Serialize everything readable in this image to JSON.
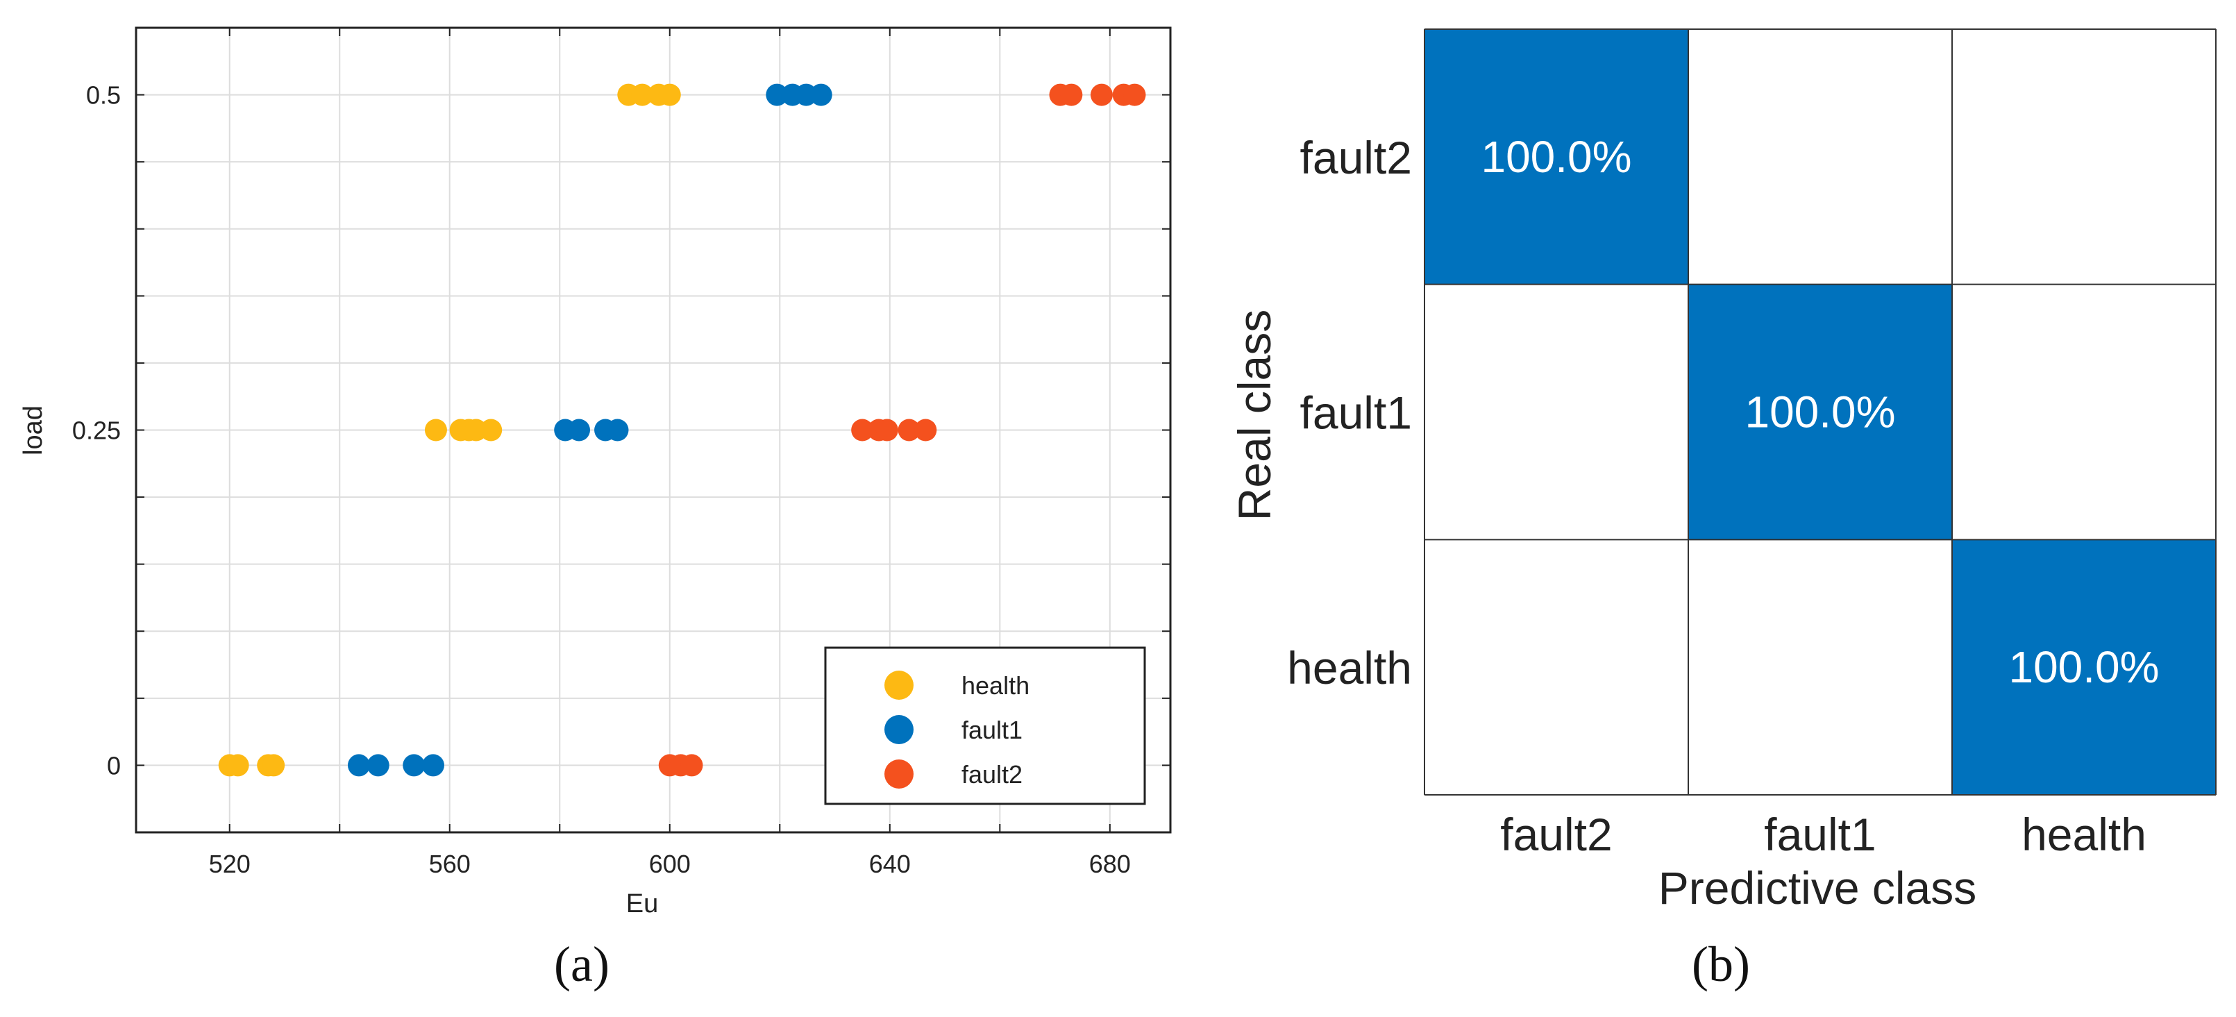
{
  "chart_data": [
    {
      "type": "scatter",
      "panel_label": "(a)",
      "xlabel": "Eu",
      "ylabel": "load",
      "xlim": [
        503,
        691
      ],
      "ylim": [
        -0.05,
        0.55
      ],
      "x_ticks": [
        520,
        560,
        600,
        640,
        680
      ],
      "x_tick_labels": [
        "520",
        "560",
        "600",
        "640",
        "680"
      ],
      "y_ticks": [
        0,
        0.25,
        0.5
      ],
      "y_tick_labels": [
        "0",
        "0.25",
        "0.5"
      ],
      "x_grid": [
        520,
        540,
        560,
        580,
        600,
        620,
        640,
        660,
        680
      ],
      "y_grid": [
        0,
        0.05,
        0.1,
        0.15,
        0.2,
        0.25,
        0.3,
        0.35,
        0.4,
        0.45,
        0.5
      ],
      "grid": true,
      "legend_position": "bottom-right",
      "series": [
        {
          "name": "health",
          "color": "#FDB913",
          "points": [
            [
              520.0,
              0
            ],
            [
              521.5,
              0
            ],
            [
              527.0,
              0
            ],
            [
              528.0,
              0
            ],
            [
              557.5,
              0.25
            ],
            [
              562.0,
              0.25
            ],
            [
              563.5,
              0.25
            ],
            [
              564.8,
              0.25
            ],
            [
              567.5,
              0.25
            ],
            [
              592.5,
              0.5
            ],
            [
              595.0,
              0.5
            ],
            [
              598.0,
              0.5
            ],
            [
              600.0,
              0.5
            ]
          ]
        },
        {
          "name": "fault1",
          "color": "#0072BD",
          "points": [
            [
              543.5,
              0
            ],
            [
              547.0,
              0
            ],
            [
              553.5,
              0
            ],
            [
              557.0,
              0
            ],
            [
              581.0,
              0.25
            ],
            [
              583.5,
              0.25
            ],
            [
              588.3,
              0.25
            ],
            [
              590.5,
              0.25
            ],
            [
              619.5,
              0.5
            ],
            [
              622.3,
              0.5
            ],
            [
              624.8,
              0.5
            ],
            [
              627.5,
              0.5
            ]
          ]
        },
        {
          "name": "fault2",
          "color": "#F4511E",
          "points": [
            [
              600.0,
              0
            ],
            [
              602.0,
              0
            ],
            [
              604.0,
              0
            ],
            [
              635.0,
              0.25
            ],
            [
              638.0,
              0.25
            ],
            [
              639.5,
              0.25
            ],
            [
              643.5,
              0.25
            ],
            [
              646.5,
              0.25
            ],
            [
              671.0,
              0.5
            ],
            [
              673.0,
              0.5
            ],
            [
              678.5,
              0.5
            ],
            [
              682.5,
              0.5
            ],
            [
              684.5,
              0.5
            ]
          ]
        }
      ]
    },
    {
      "type": "heatmap",
      "panel_label": "(b)",
      "xlabel": "Predictive class",
      "ylabel": "Real class",
      "x_categories": [
        "fault2",
        "fault1",
        "health"
      ],
      "y_categories": [
        "fault2",
        "fault1",
        "health"
      ],
      "cells": [
        [
          "100.0%",
          "",
          ""
        ],
        [
          "",
          "100.0%",
          ""
        ],
        [
          "",
          "",
          "100.0%"
        ]
      ],
      "fill_color": "#0072BD",
      "text_color": "#FFFFFF"
    }
  ]
}
